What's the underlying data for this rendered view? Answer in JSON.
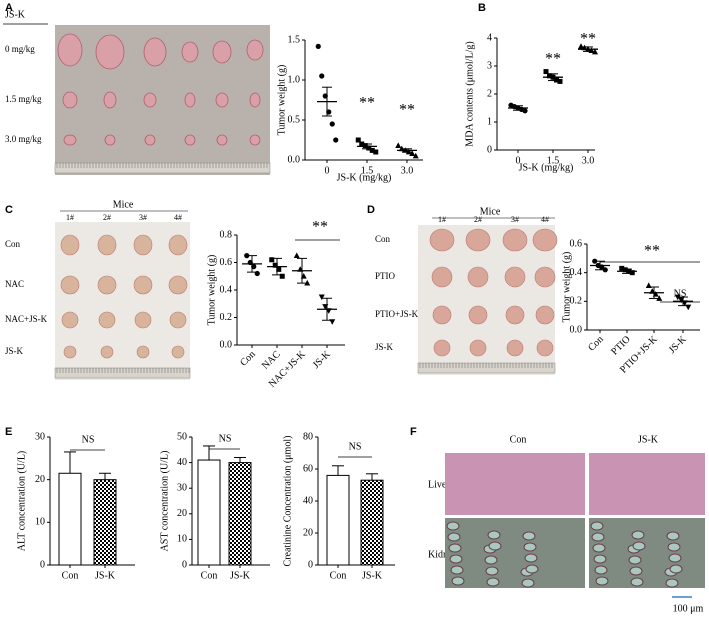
{
  "panel_labels": [
    "A",
    "B",
    "C",
    "D",
    "E",
    "F"
  ],
  "photos": [
    {
      "header": "JS-K",
      "rows": [
        "0 mg/kg",
        "1.5 mg/kg",
        "3.0 mg/kg"
      ]
    },
    {
      "header": "Mice",
      "columns": [
        "1#",
        "2#",
        "3#",
        "4#"
      ],
      "rows": [
        "Con",
        "NAC",
        "NAC+JS-K",
        "JS-K"
      ]
    },
    {
      "header": "Mice",
      "columns": [
        "1#",
        "2#",
        "3#",
        "4#"
      ],
      "rows": [
        "Con",
        "PTIO",
        "PTIO+JS-K",
        "JS-K"
      ]
    }
  ],
  "histology": {
    "columns": [
      "Con",
      "JS-K"
    ],
    "rows": [
      "Liver",
      "Kidney"
    ],
    "scale_bar": "100 μm"
  },
  "chart_data": [
    {
      "type": "dotplot",
      "ylabel": "Tumor weight (g)",
      "xlabel": "JS-K (mg/kg)",
      "categories": [
        "0",
        "1.5",
        "3.0"
      ],
      "points": [
        [
          1.42,
          1.05,
          0.8,
          0.6,
          0.45,
          0.25
        ],
        [
          0.25,
          0.2,
          0.18,
          0.15,
          0.12,
          0.1
        ],
        [
          0.18,
          0.14,
          0.12,
          0.1,
          0.08,
          0.05
        ]
      ],
      "means": [
        0.73,
        0.17,
        0.12
      ],
      "errors": [
        0.18,
        0.03,
        0.02
      ],
      "markers": [
        "circle",
        "square",
        "triangle"
      ],
      "color": "#000000",
      "ylim": [
        0,
        1.5
      ],
      "yticks": [
        {
          "value": 0,
          "label": "0.0"
        },
        0.5,
        {
          "value": 1,
          "label": "1.0"
        },
        1.5
      ],
      "annotations": [
        "**",
        "**"
      ]
    },
    {
      "type": "dotplot",
      "ylabel": "MDA contents (μmol/L/g)",
      "xlabel": "JS-K (mg/kg)",
      "categories": [
        "0",
        "1.5",
        "3.0"
      ],
      "points": [
        [
          1.6,
          1.55,
          1.5,
          1.45,
          1.4
        ],
        [
          2.8,
          2.65,
          2.6,
          2.5,
          2.45
        ],
        [
          3.7,
          3.65,
          3.6,
          3.55,
          3.5
        ]
      ],
      "means": [
        1.5,
        2.6,
        3.6
      ],
      "errors": [
        0.08,
        0.12,
        0.08
      ],
      "markers": [
        "circle",
        "square",
        "triangle"
      ],
      "color": "#000000",
      "ylim": [
        0,
        4
      ],
      "yticks": [
        0,
        1,
        2,
        3,
        4
      ],
      "annotations": [
        "**",
        "**"
      ]
    },
    {
      "type": "dotplot",
      "ylabel": "Tumor weight (g)",
      "categories": [
        "Con",
        "NAC",
        "NAC+JS-K",
        "JS-K"
      ],
      "points": [
        [
          0.65,
          0.6,
          0.57,
          0.52
        ],
        [
          0.62,
          0.58,
          0.55,
          0.5
        ],
        [
          0.65,
          0.55,
          0.5,
          0.45
        ],
        [
          0.35,
          0.28,
          0.25,
          0.17
        ]
      ],
      "means": [
        0.59,
        0.57,
        0.54,
        0.26
      ],
      "errors": [
        0.06,
        0.06,
        0.09,
        0.08
      ],
      "markers": [
        "circle",
        "square",
        "triangle",
        "triangle-down"
      ],
      "color": "#000000",
      "ylim": [
        0,
        0.8
      ],
      "yticks": [
        {
          "value": 0,
          "label": "0.0"
        },
        0.2,
        0.4,
        0.6,
        0.8
      ],
      "annotations": [
        "**"
      ]
    },
    {
      "type": "dotplot",
      "ylabel": "Tumor weight (g)",
      "categories": [
        "Con",
        "PTIO",
        "PTIO+JS-K",
        "JS-K"
      ],
      "points": [
        [
          0.48,
          0.45,
          0.44,
          0.42
        ],
        [
          0.43,
          0.42,
          0.41,
          0.4
        ],
        [
          0.31,
          0.27,
          0.25,
          0.22
        ],
        [
          0.23,
          0.21,
          0.19,
          0.16
        ]
      ],
      "means": [
        0.45,
        0.41,
        0.26,
        0.2
      ],
      "errors": [
        0.03,
        0.015,
        0.04,
        0.03
      ],
      "markers": [
        "circle",
        "square",
        "triangle",
        "triangle-down"
      ],
      "color": "#000000",
      "ylim": [
        0,
        0.6
      ],
      "yticks": [
        {
          "value": 0,
          "label": "0.0"
        },
        0.2,
        0.4,
        0.6
      ],
      "annotations": [
        "**",
        "NS"
      ]
    },
    {
      "type": "bar",
      "ylabel": "ALT concentration (U/L)",
      "categories": [
        "Con",
        "JS-K"
      ],
      "values": [
        21.5,
        20
      ],
      "errors": [
        5,
        1.5
      ],
      "fills": [
        "#ffffff",
        "checkerboard"
      ],
      "ylim": [
        0,
        30
      ],
      "yticks": [
        0,
        10,
        20,
        30
      ],
      "annotations": [
        "NS"
      ]
    },
    {
      "type": "bar",
      "ylabel": "AST concentration (U/L)",
      "categories": [
        "Con",
        "JS-K"
      ],
      "values": [
        41,
        40
      ],
      "errors": [
        5.5,
        2
      ],
      "fills": [
        "#ffffff",
        "checkerboard"
      ],
      "ylim": [
        0,
        50
      ],
      "yticks": [
        0,
        10,
        20,
        30,
        40,
        50
      ],
      "annotations": [
        "NS"
      ]
    },
    {
      "type": "bar",
      "ylabel": "Creatinine Concentration (μmol)",
      "categories": [
        "Con",
        "JS-K"
      ],
      "values": [
        56,
        53
      ],
      "errors": [
        6,
        4
      ],
      "fills": [
        "#ffffff",
        "checkerboard"
      ],
      "ylim": [
        0,
        80
      ],
      "yticks": [
        0,
        20,
        40,
        60,
        80
      ],
      "annotations": [
        "NS"
      ]
    }
  ]
}
